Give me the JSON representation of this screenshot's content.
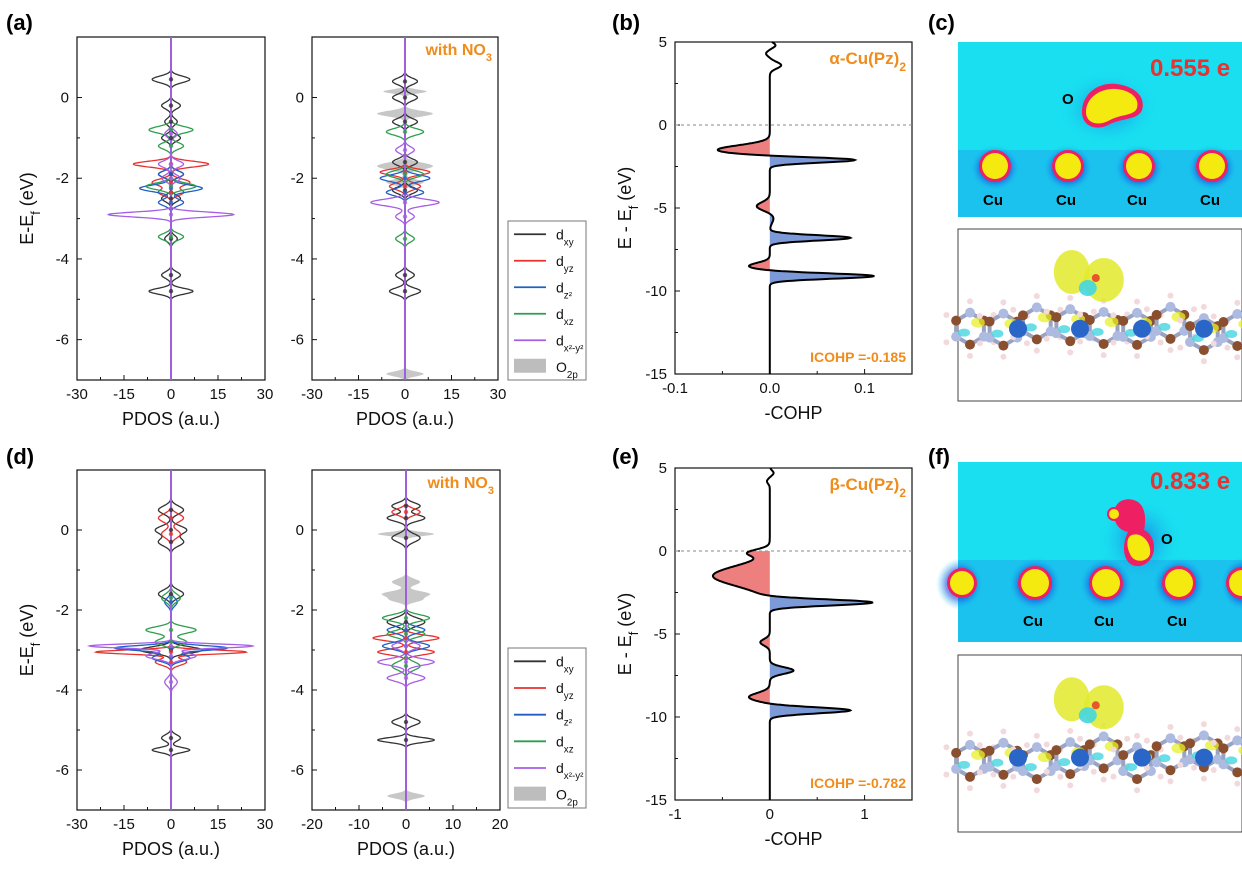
{
  "colors": {
    "dxy": "#333333",
    "dyz": "#e8312d",
    "dz2": "#1f5fc7",
    "dxz": "#2e9e4d",
    "dx2y2": "#a65ee6",
    "o2p": "#bdbdbd",
    "bonding_fill": "#7d9ad8",
    "antibonding_fill": "#ee7f7f",
    "annot": "#f08c1c",
    "charge": "#e53333",
    "map_bg": "#19dff0",
    "map_blob": "#f5ea10",
    "map_ring": "#ee1f62",
    "map_halo": "#1b2fd4"
  },
  "panel_letters": [
    "(a)",
    "(b)",
    "(c)",
    "(d)",
    "(e)",
    "(f)"
  ],
  "legend": {
    "entries": [
      "d_xy",
      "d_yz",
      "d_z2",
      "d_xz",
      "d_x2-y2",
      "O_2p"
    ]
  },
  "chart_data": [
    {
      "id": "a-left",
      "type": "line",
      "panel": "(a)",
      "xlabel": "PDOS (a.u.)",
      "ylabel": "E-E_f (eV)",
      "xlim": [
        -30,
        30
      ],
      "ylim": [
        -7,
        1.5
      ],
      "xticks": [
        -30,
        -15,
        0,
        15,
        30
      ],
      "yticks": [
        0,
        -2,
        -4,
        -6
      ],
      "annotation": "",
      "series": [
        {
          "name": "d_xy",
          "peaks": [
            [
              0.45,
              6,
              0.08
            ],
            [
              -0.2,
              3,
              0.08
            ],
            [
              -0.6,
              2,
              0.08
            ],
            [
              -1.0,
              3,
              0.08
            ],
            [
              -1.9,
              4,
              0.08
            ],
            [
              -2.5,
              3,
              0.08
            ],
            [
              -3.5,
              2,
              0.08
            ],
            [
              -4.4,
              3,
              0.08
            ],
            [
              -4.8,
              7,
              0.07
            ]
          ]
        },
        {
          "name": "d_yz",
          "peaks": [
            [
              -1.65,
              12,
              0.07
            ],
            [
              -2.1,
              6,
              0.08
            ],
            [
              -2.35,
              4,
              0.08
            ]
          ]
        },
        {
          "name": "d_z2",
          "peaks": [
            [
              -2.25,
              10,
              0.08
            ],
            [
              -1.9,
              4,
              0.08
            ],
            [
              -2.6,
              4,
              0.08
            ]
          ]
        },
        {
          "name": "d_xz",
          "peaks": [
            [
              -0.8,
              7,
              0.08
            ],
            [
              -2.2,
              8,
              0.08
            ],
            [
              -3.45,
              4,
              0.08
            ],
            [
              -1.2,
              4,
              0.08
            ]
          ]
        },
        {
          "name": "d_x2-y2",
          "peaks": [
            [
              -2.9,
              20,
              0.06
            ],
            [
              -1.65,
              4,
              0.08
            ],
            [
              -0.9,
              2,
              0.08
            ],
            [
              -2.0,
              3,
              0.08
            ]
          ]
        }
      ]
    },
    {
      "id": "a-right",
      "type": "line",
      "panel": "(a)",
      "xlabel": "PDOS (a.u.)",
      "ylabel": "",
      "xlim": [
        -30,
        30
      ],
      "ylim": [
        -7,
        1.5
      ],
      "xticks": [
        -30,
        -15,
        0,
        15,
        30
      ],
      "yticks": [
        0,
        -2,
        -4,
        -6
      ],
      "annotation": "with NO3",
      "series": [
        {
          "name": "d_xy",
          "peaks": [
            [
              0.4,
              4,
              0.08
            ],
            [
              0.0,
              4,
              0.08
            ],
            [
              -0.6,
              4,
              0.08
            ],
            [
              -1.6,
              4,
              0.08
            ],
            [
              -2.3,
              4,
              0.08
            ],
            [
              -4.8,
              5,
              0.08
            ],
            [
              -4.4,
              3,
              0.08
            ]
          ]
        },
        {
          "name": "d_yz",
          "peaks": [
            [
              -1.85,
              8,
              0.07
            ],
            [
              -2.2,
              5,
              0.08
            ]
          ]
        },
        {
          "name": "d_z2",
          "peaks": [
            [
              -2.0,
              8,
              0.08
            ],
            [
              -2.35,
              6,
              0.08
            ]
          ]
        },
        {
          "name": "d_xz",
          "peaks": [
            [
              -0.85,
              6,
              0.08
            ],
            [
              -1.9,
              6,
              0.08
            ],
            [
              -3.5,
              3,
              0.08
            ]
          ]
        },
        {
          "name": "d_x2-y2",
          "peaks": [
            [
              -2.6,
              11,
              0.08
            ],
            [
              -1.3,
              3,
              0.08
            ],
            [
              -2.95,
              3,
              0.08
            ]
          ]
        },
        {
          "name": "O_2p",
          "fill": true,
          "peaks": [
            [
              0.15,
              7,
              0.05
            ],
            [
              -0.4,
              9,
              0.07
            ],
            [
              -1.7,
              9,
              0.09
            ],
            [
              -2.1,
              6,
              0.07
            ],
            [
              -6.85,
              6,
              0.06
            ]
          ]
        }
      ]
    },
    {
      "id": "b",
      "type": "area",
      "panel": "(b)",
      "xlabel": "-COHP",
      "ylabel": "E - E_f (eV)",
      "xlim": [
        -0.1,
        0.15
      ],
      "ylim": [
        -15,
        5
      ],
      "xticks": [
        -0.1,
        0.0,
        0.1
      ],
      "xtick_labels": [
        "-0.1",
        "0.0",
        "0.1"
      ],
      "yticks": [
        5,
        0,
        -5,
        -10,
        -15
      ],
      "title": "α-Cu(Pz)2",
      "annotation": "ICOHP =-0.185",
      "peaks": [
        [
          -1.5,
          -0.055,
          0.28
        ],
        [
          -2.1,
          0.095,
          0.16
        ],
        [
          -4.9,
          -0.014,
          0.25
        ],
        [
          -5.6,
          0.004,
          0.3
        ],
        [
          -6.8,
          0.085,
          0.16
        ],
        [
          -8.5,
          -0.022,
          0.2
        ],
        [
          -9.1,
          0.11,
          0.16
        ],
        [
          4.8,
          0.006,
          0.15
        ],
        [
          4.3,
          -0.004,
          0.15
        ],
        [
          3.6,
          0.012,
          0.2
        ]
      ]
    },
    {
      "id": "d-left",
      "type": "line",
      "panel": "(d)",
      "xlabel": "PDOS (a.u.)",
      "ylabel": "E-E_f (eV)",
      "xlim": [
        -30,
        30
      ],
      "ylim": [
        -7,
        1.5
      ],
      "xticks": [
        -30,
        -15,
        0,
        15,
        30
      ],
      "yticks": [
        0,
        -2,
        -4,
        -6
      ],
      "annotation": "",
      "series": [
        {
          "name": "d_xy",
          "peaks": [
            [
              0.5,
              4,
              0.1
            ],
            [
              0.0,
              5,
              0.1
            ],
            [
              -0.3,
              4,
              0.1
            ],
            [
              -1.6,
              4,
              0.1
            ],
            [
              -3.0,
              10,
              0.08
            ],
            [
              -5.2,
              3,
              0.08
            ],
            [
              -5.5,
              6,
              0.06
            ]
          ]
        },
        {
          "name": "d_yz",
          "peaks": [
            [
              0.3,
              4,
              0.1
            ],
            [
              -0.1,
              3,
              0.1
            ],
            [
              -3.05,
              24,
              0.05
            ],
            [
              -3.3,
              5,
              0.08
            ]
          ]
        },
        {
          "name": "d_z2",
          "peaks": [
            [
              -2.95,
              18,
              0.06
            ],
            [
              -3.2,
              6,
              0.08
            ],
            [
              -1.8,
              2,
              0.1
            ]
          ]
        },
        {
          "name": "d_xz",
          "peaks": [
            [
              -2.5,
              8,
              0.08
            ],
            [
              -2.8,
              5,
              0.08
            ],
            [
              -1.7,
              3,
              0.1
            ]
          ]
        },
        {
          "name": "d_x2-y2",
          "peaks": [
            [
              -2.9,
              26,
              0.05
            ],
            [
              -3.15,
              8,
              0.08
            ],
            [
              -3.8,
              2,
              0.1
            ]
          ]
        }
      ]
    },
    {
      "id": "d-right",
      "type": "line",
      "panel": "(d)",
      "xlabel": "PDOS (a.u.)",
      "ylabel": "",
      "xlim": [
        -20,
        20
      ],
      "ylim": [
        -7,
        1.5
      ],
      "xticks": [
        -20,
        -10,
        0,
        10,
        20
      ],
      "yticks": [
        0,
        -2,
        -4,
        -6
      ],
      "annotation": "with NO3",
      "series": [
        {
          "name": "d_xy",
          "peaks": [
            [
              0.6,
              3,
              0.08
            ],
            [
              0.3,
              4,
              0.08
            ],
            [
              -0.2,
              3,
              0.1
            ],
            [
              -2.3,
              4,
              0.1
            ],
            [
              -4.8,
              3,
              0.08
            ],
            [
              -5.25,
              6,
              0.06
            ]
          ]
        },
        {
          "name": "d_yz",
          "peaks": [
            [
              0.45,
              3,
              0.08
            ],
            [
              -2.7,
              7,
              0.07
            ],
            [
              -3.05,
              6,
              0.07
            ]
          ]
        },
        {
          "name": "d_z2",
          "peaks": [
            [
              -2.5,
              4,
              0.08
            ],
            [
              -2.9,
              5,
              0.08
            ]
          ]
        },
        {
          "name": "d_xz",
          "peaks": [
            [
              -2.2,
              5,
              0.08
            ],
            [
              -2.6,
              4,
              0.08
            ],
            [
              -3.4,
              3,
              0.1
            ]
          ]
        },
        {
          "name": "d_x2-y2",
          "peaks": [
            [
              -3.3,
              6,
              0.08
            ],
            [
              -3.7,
              4,
              0.08
            ],
            [
              -2.9,
              3,
              0.08
            ]
          ]
        },
        {
          "name": "O_2p",
          "fill": true,
          "peaks": [
            [
              -0.1,
              6,
              0.05
            ],
            [
              -1.3,
              3,
              0.08
            ],
            [
              -1.6,
              5,
              0.07
            ],
            [
              -1.75,
              3,
              0.06
            ],
            [
              -6.65,
              4,
              0.06
            ]
          ]
        }
      ]
    },
    {
      "id": "e",
      "type": "area",
      "panel": "(e)",
      "xlabel": "-COHP",
      "ylabel": "E - E_f (eV)",
      "xlim": [
        -1,
        1.5
      ],
      "ylim": [
        -15,
        5
      ],
      "xticks": [
        -1,
        0,
        1
      ],
      "xtick_labels": [
        "-1",
        "0",
        "1"
      ],
      "yticks": [
        5,
        0,
        -5,
        -10,
        -15
      ],
      "title": "β-Cu(Pz)2",
      "annotation": "ICOHP =-0.782",
      "peaks": [
        [
          -1.5,
          -0.6,
          0.6
        ],
        [
          -0.1,
          -0.2,
          0.2
        ],
        [
          -3.1,
          1.1,
          0.18
        ],
        [
          -5.5,
          -0.1,
          0.2
        ],
        [
          -7.2,
          0.25,
          0.2
        ],
        [
          -8.8,
          -0.22,
          0.25
        ],
        [
          -9.6,
          0.85,
          0.18
        ],
        [
          4.7,
          0.04,
          0.15
        ],
        [
          4.2,
          -0.03,
          0.15
        ]
      ]
    }
  ],
  "maps": {
    "c": {
      "charge_label": "0.555 e",
      "o_label": "O",
      "cu_labels": [
        "Cu",
        "Cu",
        "Cu",
        "Cu"
      ]
    },
    "f": {
      "charge_label": "0.833 e",
      "o_label": "O",
      "cu_labels": [
        "Cu",
        "Cu",
        "Cu"
      ]
    }
  }
}
